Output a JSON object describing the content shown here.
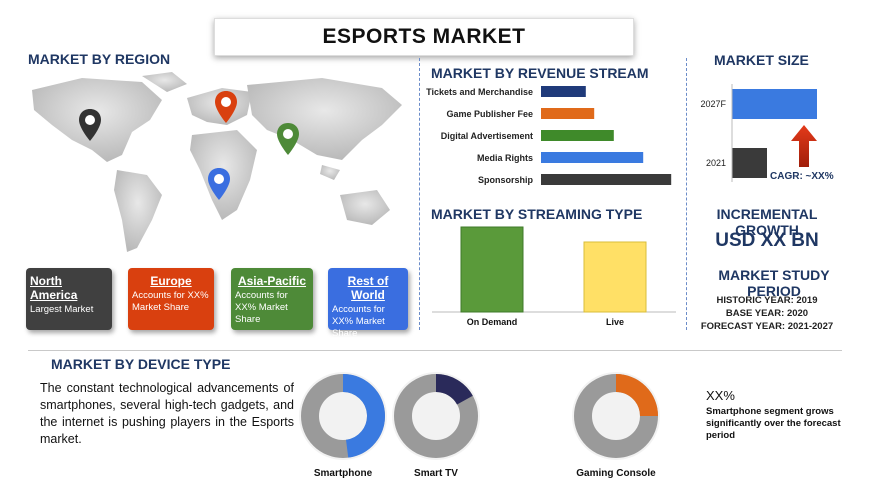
{
  "title": "ESPORTS MARKET",
  "region_section": {
    "title": "MARKET BY REGION",
    "cards": [
      {
        "name": "North America",
        "desc": "Largest Market",
        "color": "#404040"
      },
      {
        "name": "Europe",
        "desc": "Accounts for XX% Market Share",
        "color": "#d9400f"
      },
      {
        "name": "Asia-Pacific",
        "desc": "Accounts for XX% Market Share",
        "color": "#4e8a38"
      },
      {
        "name": "Rest of World",
        "desc": "Accounts for XX% Market Share",
        "color": "#3a6ee0"
      }
    ],
    "pins": [
      {
        "icon": "map-pin-icon",
        "color": "#333333"
      },
      {
        "icon": "map-pin-icon",
        "color": "#d9400f"
      },
      {
        "icon": "map-pin-icon",
        "color": "#4e8a38"
      },
      {
        "icon": "map-pin-icon",
        "color": "#3a6ee0"
      }
    ]
  },
  "revenue_section": {
    "title": "MARKET BY REVENUE STREAM"
  },
  "streaming_section": {
    "title": "MARKET BY STREAMING TYPE"
  },
  "size_section": {
    "title": "MARKET SIZE",
    "cagr": "CAGR: ~XX%",
    "arrow_icon": "up-arrow-icon"
  },
  "growth_section": {
    "title": "INCREMENTAL GROWTH",
    "value": "USD XX BN"
  },
  "study_section": {
    "title": "MARKET STUDY PERIOD",
    "historic": "HISTORIC YEAR: 2019",
    "base": "BASE YEAR: 2020",
    "forecast": "FORECAST YEAR: 2021-2027"
  },
  "device_section": {
    "title": "MARKET BY DEVICE TYPE",
    "description": "The constant technological advancements of smartphones, several high-tech gadgets, and the internet is pushing players in the Esports market.",
    "highlight_value": "XX%",
    "highlight_text": "Smartphone segment grows significantly over the forecast period"
  },
  "chart_data": [
    {
      "type": "bar",
      "orientation": "horizontal",
      "categories": [
        "Tickets and Merchandise",
        "Game Publisher Fee",
        "Digital Advertisement",
        "Media Rights",
        "Sponsorship"
      ],
      "values": [
        32,
        38,
        52,
        73,
        93
      ],
      "colors": [
        "#1f3a7a",
        "#e06a1a",
        "#3f8a2a",
        "#3a7ae0",
        "#3a3a3a"
      ],
      "xlim": [
        0,
        100
      ]
    },
    {
      "type": "bar",
      "categories": [
        "On Demand",
        "Live"
      ],
      "values": [
        85,
        70
      ],
      "colors": [
        "#5a9a3a",
        "#ffe066"
      ],
      "ylim": [
        0,
        100
      ]
    },
    {
      "type": "bar",
      "orientation": "horizontal",
      "categories": [
        "2027F",
        "2021"
      ],
      "values": [
        85,
        35
      ],
      "colors": [
        "#3a7ae0",
        "#3a3a3a"
      ],
      "xlim": [
        0,
        100
      ]
    },
    {
      "type": "pie",
      "donuts": [
        {
          "label": "Smartphone",
          "value": 48,
          "color": "#3a7ae0"
        },
        {
          "label": "Smart TV",
          "value": 17,
          "color": "#2a2a5a"
        },
        {
          "label": "Gaming Console",
          "value": 25,
          "color": "#e06a1a"
        }
      ],
      "remainder_color": "#9a9a9a"
    }
  ]
}
